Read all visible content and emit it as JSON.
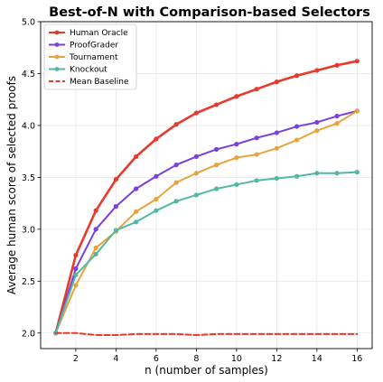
{
  "chart_data": {
    "type": "line",
    "title": "Best-of-N with Comparison-based Selectors",
    "xlabel": "n (number of samples)",
    "ylabel": "Average human score of selected proofs",
    "xlim": [
      0.25,
      16.75
    ],
    "ylim": [
      1.85,
      5.0
    ],
    "xticks": [
      2,
      4,
      6,
      8,
      10,
      12,
      14,
      16
    ],
    "yticks": [
      2.0,
      2.5,
      3.0,
      3.5,
      4.0,
      4.5,
      5.0
    ],
    "ytick_labels": [
      "2.0",
      "2.5",
      "3.0",
      "3.5",
      "4.0",
      "4.5",
      "5.0"
    ],
    "grid": true,
    "legend_position": "top-left",
    "x": [
      1,
      2,
      3,
      4,
      5,
      6,
      7,
      8,
      9,
      10,
      11,
      12,
      13,
      14,
      15,
      16
    ],
    "series": [
      {
        "name": "Human Oracle",
        "color": "#e8392a",
        "marker": true,
        "dashed": false,
        "values": [
          2.0,
          2.75,
          3.18,
          3.48,
          3.7,
          3.87,
          4.01,
          4.12,
          4.2,
          4.28,
          4.35,
          4.42,
          4.48,
          4.53,
          4.58,
          4.62
        ]
      },
      {
        "name": "ProofGrader",
        "color": "#7b3fe0",
        "marker": true,
        "dashed": false,
        "values": [
          2.0,
          2.62,
          3.0,
          3.22,
          3.39,
          3.51,
          3.62,
          3.7,
          3.77,
          3.82,
          3.88,
          3.93,
          3.99,
          4.03,
          4.09,
          4.14
        ]
      },
      {
        "name": "Tournament",
        "color": "#e8a33d",
        "marker": true,
        "dashed": false,
        "values": [
          2.0,
          2.46,
          2.82,
          2.98,
          3.17,
          3.29,
          3.45,
          3.54,
          3.62,
          3.69,
          3.72,
          3.78,
          3.86,
          3.95,
          4.02,
          4.14
        ]
      },
      {
        "name": "Knockout",
        "color": "#52b8a3",
        "marker": true,
        "dashed": false,
        "values": [
          2.0,
          2.56,
          2.76,
          2.99,
          3.07,
          3.18,
          3.27,
          3.33,
          3.39,
          3.43,
          3.47,
          3.49,
          3.51,
          3.54,
          3.54,
          3.55
        ]
      },
      {
        "name": "Mean Baseline",
        "color": "#e8392a",
        "marker": false,
        "dashed": true,
        "values": [
          2.0,
          2.0,
          1.98,
          1.98,
          1.99,
          1.99,
          1.99,
          1.98,
          1.99,
          1.99,
          1.99,
          1.99,
          1.99,
          1.99,
          1.99,
          1.99
        ]
      }
    ]
  }
}
